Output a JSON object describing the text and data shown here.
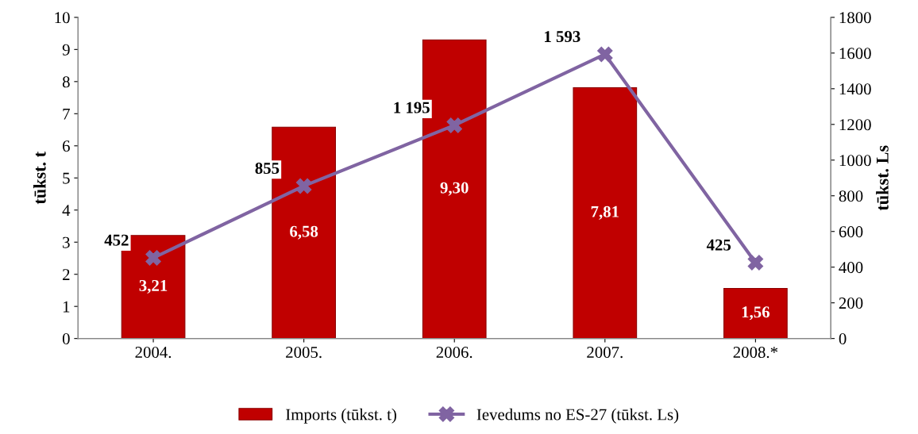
{
  "chart_data": {
    "type": "bar",
    "categories": [
      "2004.",
      "2005.",
      "2006.",
      "2007.",
      "2008.*"
    ],
    "ylabel": "tūkst. t",
    "y2label": "tūkst. Ls",
    "ylim": [
      0,
      10
    ],
    "yticks": [
      0,
      1,
      2,
      3,
      4,
      5,
      6,
      7,
      8,
      9,
      10
    ],
    "y2lim": [
      0,
      1800
    ],
    "y2ticks": [
      0,
      200,
      400,
      600,
      800,
      1000,
      1200,
      1400,
      1600,
      1800
    ],
    "legend": "bottom",
    "grid": false,
    "series": [
      {
        "name": "Imports (tūkst. t)",
        "color": "#c00000",
        "values": [
          3.21,
          6.58,
          9.3,
          7.81,
          1.56
        ],
        "value_labels": [
          "3,21",
          "6,58",
          "9,30",
          "7,81",
          "1,56"
        ]
      },
      {
        "name": "Ievedums no ES-27 (tūkst. Ls)",
        "type": "line",
        "axis": "y2",
        "color": "#8064a2",
        "marker": "cross",
        "line_style": "solid",
        "values": [
          452,
          855,
          1195,
          1593,
          425
        ],
        "value_labels": [
          "452",
          "855",
          "1 195",
          "1 593",
          "425"
        ]
      }
    ]
  }
}
